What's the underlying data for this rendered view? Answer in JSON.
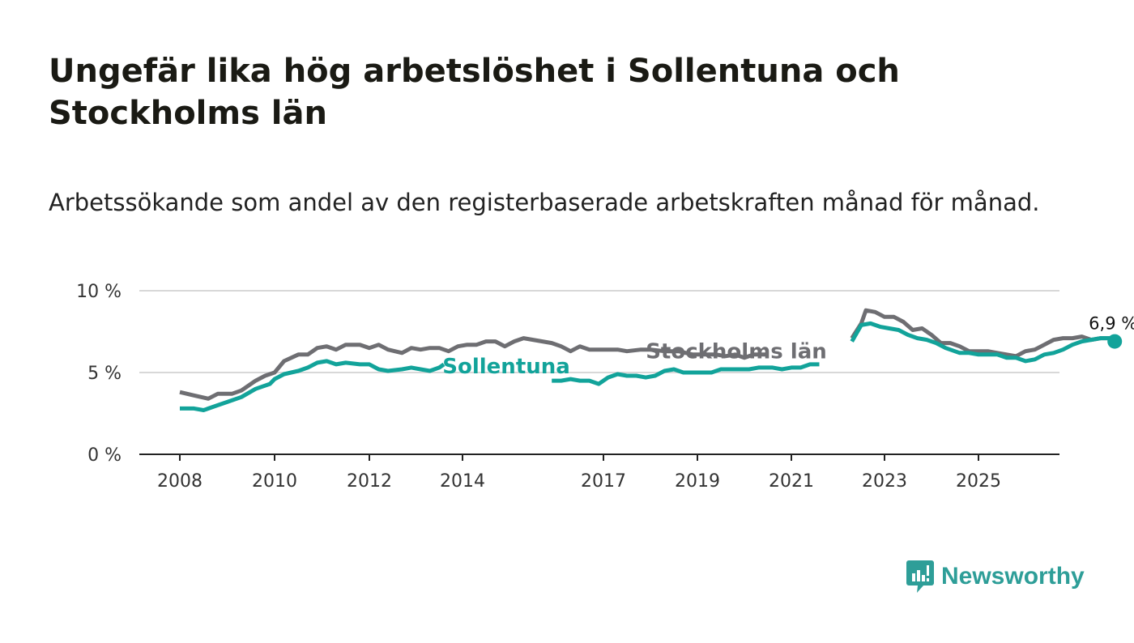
{
  "title": "Ungefär lika hög arbetslöshet i Sollentuna och Stockholms län",
  "subtitle": "Arbetssökande som andel av den registerbaserade arbetskraften månad för månad.",
  "brand": "Newsworthy",
  "colors": {
    "sollentuna": "#12a39a",
    "stockholm": "#6e6e72",
    "grid": "#d8d8d8",
    "axis": "#222222",
    "brand": "#2e9e98"
  },
  "chart_data": {
    "type": "line",
    "title": "Ungefär lika hög arbetslöshet i Sollentuna och Stockholms län",
    "xlabel": "",
    "ylabel": "",
    "xlim": [
      2008.0,
      2026.8
    ],
    "ylim": [
      0,
      10
    ],
    "y_ticks": [
      0,
      5,
      10
    ],
    "y_tick_labels": [
      "0 %",
      "5 %",
      "10 %"
    ],
    "x_ticks": [
      2008,
      2010,
      2012,
      2014,
      2017,
      2019,
      2021,
      2023,
      2025
    ],
    "x_tick_labels": [
      "2008",
      "2010",
      "2012",
      "2014",
      "2017",
      "2019",
      "2021",
      "2023",
      "2025"
    ],
    "grid": true,
    "end_label": "6,9 %",
    "series": [
      {
        "name": "Stockholms län",
        "label": "Stockholms län",
        "points": [
          [
            2008.0,
            3.8
          ],
          [
            2008.3,
            3.6
          ],
          [
            2008.6,
            3.4
          ],
          [
            2008.8,
            3.7
          ],
          [
            2009.1,
            3.7
          ],
          [
            2009.3,
            3.9
          ],
          [
            2009.6,
            4.5
          ],
          [
            2009.8,
            4.8
          ],
          [
            2010.0,
            5.0
          ],
          [
            2010.2,
            5.7
          ],
          [
            2010.5,
            6.1
          ],
          [
            2010.7,
            6.1
          ],
          [
            2010.9,
            6.5
          ],
          [
            2011.1,
            6.6
          ],
          [
            2011.3,
            6.4
          ],
          [
            2011.5,
            6.7
          ],
          [
            2011.8,
            6.7
          ],
          [
            2012.0,
            6.5
          ],
          [
            2012.2,
            6.7
          ],
          [
            2012.4,
            6.4
          ],
          [
            2012.7,
            6.2
          ],
          [
            2012.9,
            6.5
          ],
          [
            2013.1,
            6.4
          ],
          [
            2013.3,
            6.5
          ],
          [
            2013.5,
            6.5
          ],
          [
            2013.7,
            6.3
          ],
          [
            2013.9,
            6.6
          ],
          [
            2014.1,
            6.7
          ],
          [
            2014.3,
            6.7
          ],
          [
            2014.5,
            6.9
          ],
          [
            2014.7,
            6.9
          ],
          [
            2014.9,
            6.6
          ],
          [
            2015.1,
            6.9
          ],
          [
            2015.3,
            7.1
          ],
          [
            2015.5,
            7.0
          ],
          [
            2015.7,
            6.9
          ],
          [
            2015.9,
            6.8
          ],
          [
            2016.1,
            6.6
          ],
          [
            2016.3,
            6.3
          ],
          [
            2016.5,
            6.6
          ],
          [
            2016.7,
            6.4
          ],
          [
            2017.0,
            6.4
          ],
          [
            2017.3,
            6.4
          ],
          [
            2017.5,
            6.3
          ],
          [
            2017.8,
            6.4
          ],
          [
            2018.0,
            6.4
          ],
          [
            2018.3,
            6.3
          ],
          [
            2018.6,
            6.3
          ],
          [
            2018.9,
            6.1
          ],
          [
            2019.1,
            6.1
          ],
          [
            2019.4,
            6.1
          ],
          [
            2019.6,
            6.0
          ],
          [
            2019.8,
            6.1
          ],
          [
            2020.0,
            5.9
          ],
          [
            2020.2,
            6.1
          ],
          [
            2020.5,
            6.1
          ],
          null,
          [
            2022.3,
            7.1
          ],
          [
            2022.5,
            8.0
          ],
          [
            2022.6,
            8.8
          ],
          [
            2022.8,
            8.7
          ],
          [
            2023.0,
            8.4
          ],
          [
            2023.2,
            8.4
          ],
          [
            2023.4,
            8.1
          ],
          [
            2023.6,
            7.6
          ],
          [
            2023.8,
            7.7
          ],
          [
            2024.0,
            7.3
          ],
          [
            2024.2,
            6.8
          ],
          [
            2024.4,
            6.8
          ],
          [
            2024.6,
            6.6
          ],
          [
            2024.8,
            6.3
          ],
          [
            2025.0,
            6.3
          ],
          [
            2025.2,
            6.3
          ],
          [
            2025.4,
            6.2
          ],
          [
            2025.6,
            6.1
          ],
          [
            2025.8,
            6.0
          ],
          [
            2026.0,
            6.3
          ],
          [
            2026.2,
            6.4
          ],
          [
            2026.4,
            6.7
          ],
          [
            2026.6,
            7.0
          ],
          [
            2026.8,
            7.1
          ],
          [
            2027.0,
            7.1
          ],
          [
            2027.2,
            7.2
          ],
          [
            2027.4,
            7.0
          ],
          [
            2027.6,
            7.1
          ],
          [
            2027.8,
            7.1
          ],
          [
            2027.9,
            6.9
          ]
        ]
      },
      {
        "name": "Sollentuna",
        "label": "Sollentuna",
        "points": [
          [
            2008.0,
            2.8
          ],
          [
            2008.3,
            2.8
          ],
          [
            2008.5,
            2.7
          ],
          [
            2008.8,
            3.0
          ],
          [
            2009.0,
            3.2
          ],
          [
            2009.3,
            3.5
          ],
          [
            2009.6,
            4.0
          ],
          [
            2009.9,
            4.3
          ],
          [
            2010.0,
            4.6
          ],
          [
            2010.2,
            4.9
          ],
          [
            2010.5,
            5.1
          ],
          [
            2010.7,
            5.3
          ],
          [
            2010.9,
            5.6
          ],
          [
            2011.1,
            5.7
          ],
          [
            2011.3,
            5.5
          ],
          [
            2011.5,
            5.6
          ],
          [
            2011.8,
            5.5
          ],
          [
            2012.0,
            5.5
          ],
          [
            2012.2,
            5.2
          ],
          [
            2012.4,
            5.1
          ],
          [
            2012.7,
            5.2
          ],
          [
            2012.9,
            5.3
          ],
          [
            2013.1,
            5.2
          ],
          [
            2013.3,
            5.1
          ],
          [
            2013.5,
            5.3
          ],
          [
            2013.6,
            5.5
          ],
          null,
          [
            2015.9,
            4.5
          ],
          [
            2016.1,
            4.5
          ],
          [
            2016.3,
            4.6
          ],
          [
            2016.5,
            4.5
          ],
          [
            2016.7,
            4.5
          ],
          [
            2016.9,
            4.3
          ],
          [
            2017.1,
            4.7
          ],
          [
            2017.3,
            4.9
          ],
          [
            2017.5,
            4.8
          ],
          [
            2017.7,
            4.8
          ],
          [
            2017.9,
            4.7
          ],
          [
            2018.1,
            4.8
          ],
          [
            2018.3,
            5.1
          ],
          [
            2018.5,
            5.2
          ],
          [
            2018.7,
            5.0
          ],
          [
            2018.9,
            5.0
          ],
          [
            2019.1,
            5.0
          ],
          [
            2019.3,
            5.0
          ],
          [
            2019.5,
            5.2
          ],
          [
            2019.7,
            5.2
          ],
          [
            2019.9,
            5.2
          ],
          [
            2020.1,
            5.2
          ],
          [
            2020.3,
            5.3
          ],
          [
            2020.6,
            5.3
          ],
          [
            2020.8,
            5.2
          ],
          [
            2021.0,
            5.3
          ],
          [
            2021.2,
            5.3
          ],
          [
            2021.4,
            5.5
          ],
          [
            2021.6,
            5.5
          ],
          null,
          [
            2022.3,
            6.9
          ],
          [
            2022.5,
            7.9
          ],
          [
            2022.7,
            8.0
          ],
          [
            2022.9,
            7.8
          ],
          [
            2023.1,
            7.7
          ],
          [
            2023.3,
            7.6
          ],
          [
            2023.5,
            7.3
          ],
          [
            2023.7,
            7.1
          ],
          [
            2023.9,
            7.0
          ],
          [
            2024.1,
            6.8
          ],
          [
            2024.3,
            6.5
          ],
          [
            2024.6,
            6.2
          ],
          [
            2024.8,
            6.2
          ],
          [
            2025.0,
            6.1
          ],
          [
            2025.2,
            6.1
          ],
          [
            2025.4,
            6.1
          ],
          [
            2025.6,
            5.9
          ],
          [
            2025.8,
            5.9
          ],
          [
            2026.0,
            5.7
          ],
          [
            2026.2,
            5.8
          ],
          [
            2026.4,
            6.1
          ],
          [
            2026.6,
            6.2
          ],
          [
            2026.8,
            6.4
          ],
          [
            2027.0,
            6.7
          ],
          [
            2027.2,
            6.9
          ],
          [
            2027.4,
            7.0
          ],
          [
            2027.6,
            7.1
          ],
          [
            2027.8,
            7.1
          ],
          [
            2027.9,
            6.9
          ]
        ]
      }
    ]
  }
}
